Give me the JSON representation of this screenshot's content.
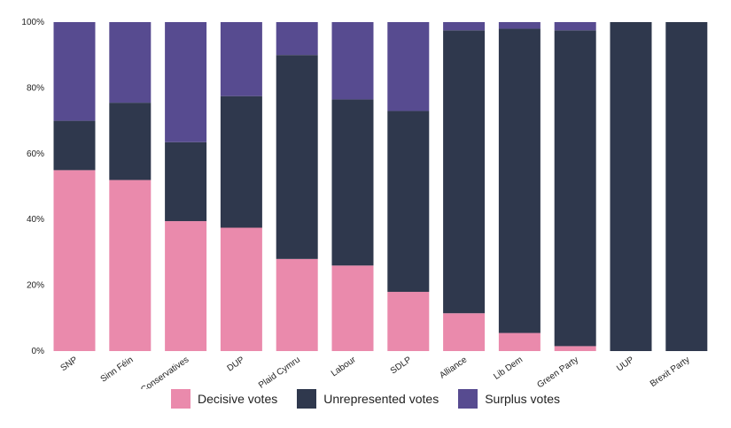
{
  "chart_data": {
    "type": "bar",
    "stacked": true,
    "categories": [
      "SNP",
      "Sinn Féin",
      "Conservatives",
      "DUP",
      "Plaid Cymru",
      "Labour",
      "SDLP",
      "Alliance",
      "Lib Dem",
      "Green Party",
      "UUP",
      "Brexit Party"
    ],
    "series": [
      {
        "name": "Decisive votes",
        "color": "#ea8aac",
        "values": [
          55,
          52,
          39.5,
          37.5,
          28,
          26,
          18,
          11.5,
          5.5,
          1.5,
          0,
          0
        ]
      },
      {
        "name": "Unrepresented votes",
        "color": "#2f384d",
        "values": [
          15,
          23.5,
          24,
          40,
          62,
          50.5,
          55,
          86,
          92.5,
          96,
          100,
          100
        ]
      },
      {
        "name": "Surplus votes",
        "color": "#574b90",
        "values": [
          30,
          24.5,
          36.5,
          22.5,
          10,
          23.5,
          27,
          2.5,
          2,
          2.5,
          0,
          0
        ]
      }
    ],
    "ylim": [
      0,
      100
    ],
    "yticks": [
      "0%",
      "20%",
      "40%",
      "60%",
      "80%",
      "100%"
    ],
    "ytick_values": [
      0,
      20,
      40,
      60,
      80,
      100
    ],
    "legend_position": "bottom-center",
    "grid": false,
    "xlabel": "",
    "ylabel": ""
  }
}
